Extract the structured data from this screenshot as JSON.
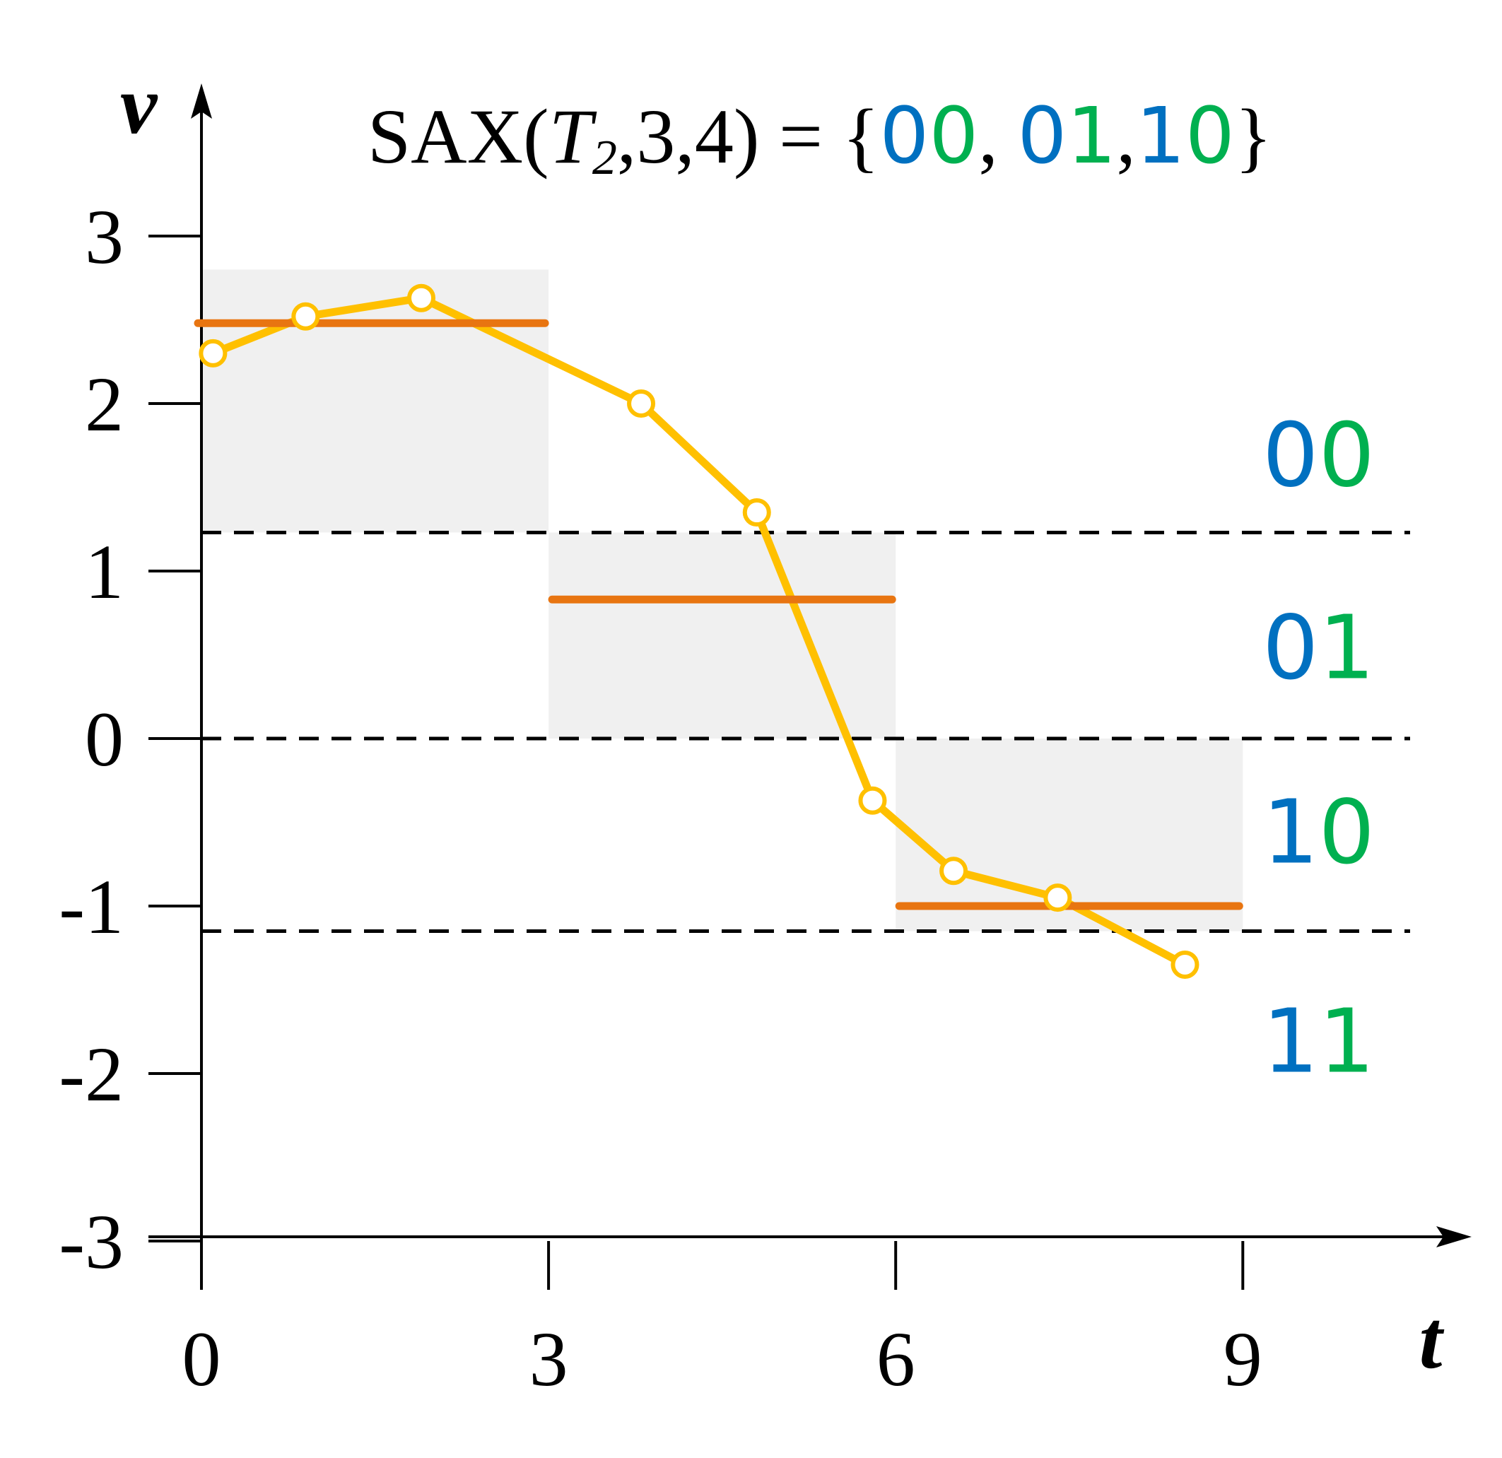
{
  "chart_data": {
    "type": "line",
    "title": {
      "prefix": "SAX(",
      "series_name": "T",
      "series_subscript": "2",
      "args": ",3,4) = {",
      "words": [
        "00",
        "01",
        "10"
      ],
      "separators": [
        ", ",
        ","
      ],
      "suffix": "}"
    },
    "xlabel": "t",
    "ylabel": "v",
    "xlim": [
      0,
      9
    ],
    "ylim": [
      -3,
      3
    ],
    "x_ticks": [
      0,
      3,
      6,
      9
    ],
    "x_tick_labels": [
      "0",
      "3",
      "6",
      "9"
    ],
    "y_ticks": [
      3,
      2,
      1,
      0,
      -1,
      -2,
      -3
    ],
    "y_tick_labels": [
      "3",
      "2",
      "1",
      "0",
      "-1",
      "-2",
      "-3"
    ],
    "series": [
      {
        "x": [
          0.1,
          0.9,
          1.9,
          3.8,
          4.8,
          5.8,
          6.5,
          7.4,
          8.5
        ],
        "y": [
          2.3,
          2.52,
          2.63,
          2.0,
          1.35,
          -0.37,
          -0.79,
          -0.95,
          -1.35
        ]
      }
    ],
    "paa_segments": [
      {
        "x_start": 0,
        "x_end": 3,
        "value": 2.48
      },
      {
        "x_start": 3,
        "x_end": 6,
        "value": 0.83
      },
      {
        "x_start": 6,
        "x_end": 9,
        "value": -1.0
      }
    ],
    "shaded_regions": [
      {
        "x_start": 0,
        "x_end": 3,
        "y_low": 1.23,
        "y_high": 2.8
      },
      {
        "x_start": 3,
        "x_end": 6,
        "y_low": 0,
        "y_high": 1.23
      },
      {
        "x_start": 6,
        "x_end": 9,
        "y_low": -1.15,
        "y_high": 0
      }
    ],
    "breakpoints": [
      1.23,
      0,
      -1.15
    ],
    "region_labels": [
      {
        "label": "00",
        "y": 1.7
      },
      {
        "label": "01",
        "y": 0.55
      },
      {
        "label": "10",
        "y": -0.55
      },
      {
        "label": "11",
        "y": -1.8
      }
    ],
    "colors": {
      "series": "#FFC000",
      "paa": "#E87511",
      "shade": "#F0F0F0",
      "bit_zero": "#0070C0",
      "bit_one": "#00B050",
      "axis": "#000000"
    }
  }
}
